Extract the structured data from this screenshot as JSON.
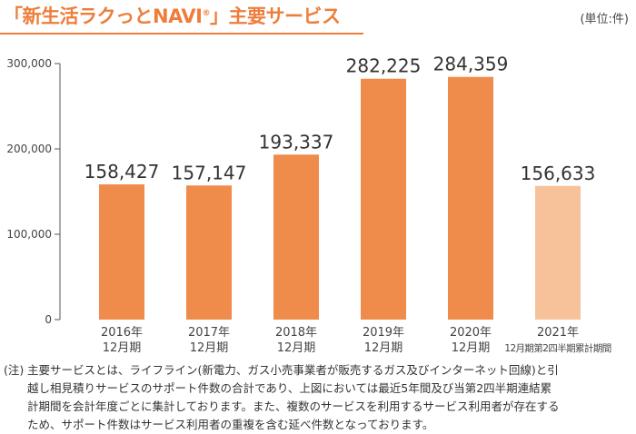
{
  "header": {
    "title_main": "「新生活ラクっとNAVI",
    "title_reg": "®",
    "title_end": "」主要サービス",
    "unit": "(単位:件)"
  },
  "chart_data": {
    "type": "bar",
    "title": "「新生活ラクっとNAVI®」主要サービス",
    "unit": "(単位:件)",
    "categories": [
      [
        "2016年",
        "12月期"
      ],
      [
        "2017年",
        "12月期"
      ],
      [
        "2018年",
        "12月期"
      ],
      [
        "2019年",
        "12月期"
      ],
      [
        "2020年",
        "12月期"
      ],
      [
        "2021年",
        "12月期第2四半期累計期間"
      ]
    ],
    "values": [
      158427,
      157147,
      193337,
      282225,
      284359,
      156633
    ],
    "value_labels": [
      "158,427",
      "157,147",
      "193,337",
      "282,225",
      "284,359",
      "156,633"
    ],
    "highlight": [
      false,
      false,
      false,
      false,
      false,
      true
    ],
    "ylim": [
      0,
      300000
    ],
    "yticks": [
      0,
      100000,
      200000,
      300000
    ],
    "ytick_labels": [
      "0",
      "100,000",
      "200,000",
      "300,000"
    ],
    "grid": false,
    "colors": {
      "bar": "#ef8c4c",
      "bar_partial": "#f7c29a",
      "axis": "#555555"
    }
  },
  "note": {
    "mark": "(注)",
    "line1": "主要サービスとは、ライフライン(新電力、ガス小売事業者が販売するガス及びインターネット回線)と引",
    "line2": "越し相見積りサービスのサポート件数の合計であり、上図においては最近5年間及び当第2四半期連結累",
    "line3": "計期間を会計年度ごとに集計しております。また、複数のサービスを利用するサービス利用者が存在する",
    "line4": "ため、サポート件数はサービス利用者の重複を含む延べ件数となっております。"
  }
}
